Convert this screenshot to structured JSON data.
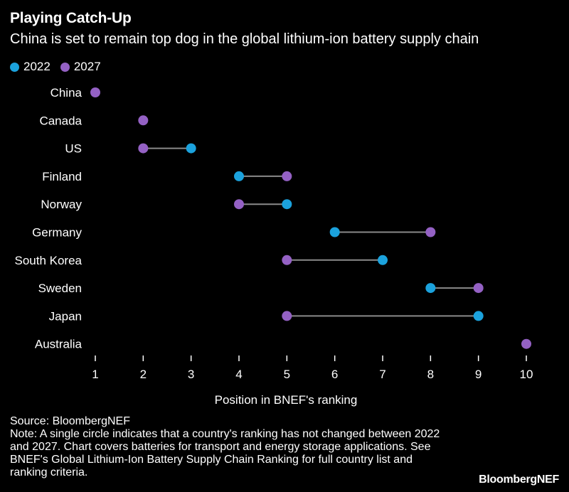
{
  "chart_data": {
    "type": "dumbbell",
    "title": "Playing Catch-Up",
    "subtitle": "China is set to remain top dog in the global lithium-ion battery supply chain",
    "xlabel": "Position in BNEF's ranking",
    "xlim": [
      1,
      10
    ],
    "xticks": [
      1,
      2,
      3,
      4,
      5,
      6,
      7,
      8,
      9,
      10
    ],
    "series": [
      {
        "name": "2022",
        "color": "#1ba2dd"
      },
      {
        "name": "2027",
        "color": "#9461c4"
      }
    ],
    "categories": [
      "China",
      "Canada",
      "US",
      "Finland",
      "Norway",
      "Germany",
      "South Korea",
      "Sweden",
      "Japan",
      "Australia"
    ],
    "points": [
      {
        "country": "China",
        "y2022": 1,
        "y2027": 1
      },
      {
        "country": "Canada",
        "y2022": 2,
        "y2027": 2
      },
      {
        "country": "US",
        "y2022": 3,
        "y2027": 2
      },
      {
        "country": "Finland",
        "y2022": 4,
        "y2027": 5
      },
      {
        "country": "Norway",
        "y2022": 5,
        "y2027": 4
      },
      {
        "country": "Germany",
        "y2022": 6,
        "y2027": 8
      },
      {
        "country": "South Korea",
        "y2022": 7,
        "y2027": 5
      },
      {
        "country": "Sweden",
        "y2022": 8,
        "y2027": 9
      },
      {
        "country": "Japan",
        "y2022": 9,
        "y2027": 5
      },
      {
        "country": "Australia",
        "y2022": 10,
        "y2027": 10
      }
    ]
  },
  "footer": {
    "source": "Source: BloombergNEF",
    "note": "Note: A single circle indicates that a country's ranking has not changed between 2022 and 2027. Chart covers batteries for transport and energy storage applications. See BNEF's Global Lithium-Ion Battery Supply Chain Ranking for full country list and ranking criteria.",
    "brand": "BloombergNEF"
  }
}
